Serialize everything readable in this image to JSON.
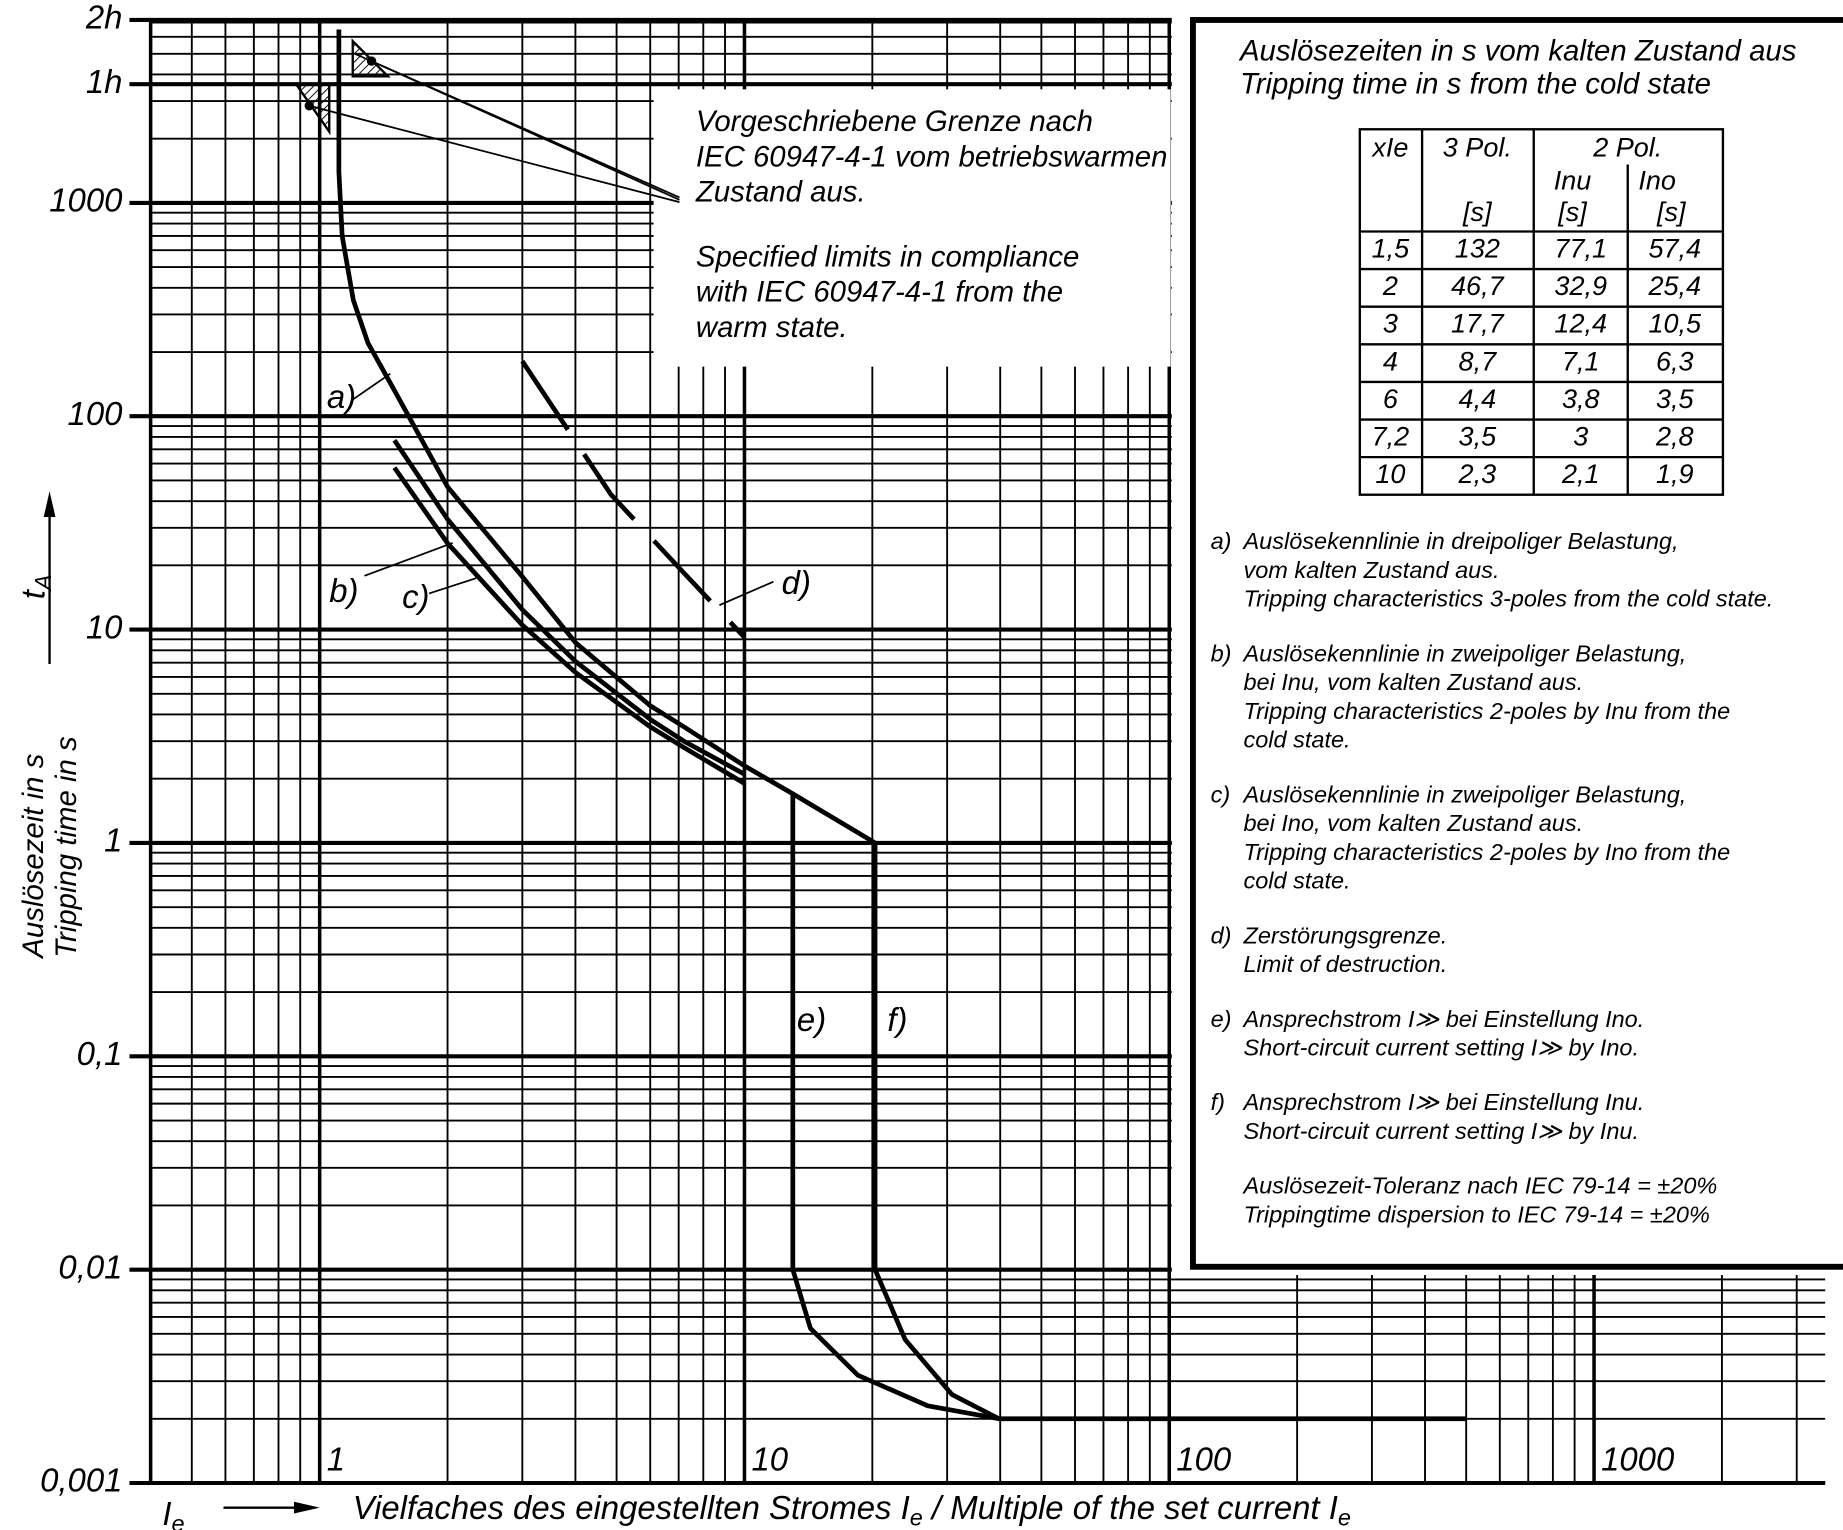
{
  "chart_data": {
    "type": "line",
    "xlog": true,
    "ylog": true,
    "grid": true,
    "xlim": [
      0.4,
      3500
    ],
    "ylim": [
      0.001,
      7200
    ],
    "xticks": [
      1,
      10,
      100,
      1000
    ],
    "yticks": [
      {
        "value": 0.001,
        "label": "0,001"
      },
      {
        "value": 0.01,
        "label": "0,01"
      },
      {
        "value": 0.1,
        "label": "0,1"
      },
      1,
      10,
      100,
      1000,
      {
        "value": 3600,
        "label": "1h"
      },
      {
        "value": 7200,
        "label": "2h"
      }
    ],
    "x_symbol": {
      "base": "I",
      "sub": "e"
    },
    "x_label": [
      {
        "text": "Vielfaches des eingestellten Stromes "
      },
      {
        "text": "I"
      },
      {
        "text": "e",
        "sub": true
      },
      {
        "text": " / Multiple of the set current "
      },
      {
        "text": "I"
      },
      {
        "text": "e",
        "sub": true
      }
    ],
    "y_symbol": {
      "base": "t",
      "sub": "A"
    },
    "y_label": [
      "Auslösezeit in s",
      "Tripping time in s"
    ],
    "annotation": [
      [
        "Vorgeschriebene Grenze nach",
        "IEC 60947-4-1 vom betriebswarmen",
        "Zustand aus."
      ],
      [
        "Specified limits in compliance",
        "with IEC 60947-4-1 from the",
        "warm state."
      ]
    ],
    "series": [
      {
        "name": "a)",
        "color": "#000",
        "x": [
          1.11,
          1.11,
          1.13,
          1.2,
          1.3,
          1.5,
          2,
          3,
          4,
          6,
          7.2,
          10,
          13,
          20.3
        ],
        "values": [
          6500,
          1400,
          700,
          350,
          220,
          132,
          46.7,
          17.7,
          8.7,
          4.4,
          3.5,
          2.3,
          1.7,
          1
        ]
      },
      {
        "name": "b)",
        "color": "#000",
        "x": [
          1.5,
          2,
          3,
          4,
          6,
          7.2,
          10
        ],
        "values": [
          77.1,
          32.9,
          12.4,
          7.1,
          3.8,
          3,
          2.1
        ]
      },
      {
        "name": "c)",
        "color": "#000",
        "x": [
          1.5,
          2,
          3,
          4,
          6,
          7.2,
          10
        ],
        "values": [
          57.4,
          25.4,
          10.5,
          6.3,
          3.5,
          2.8,
          1.9
        ]
      },
      {
        "name": "d)",
        "color": "#000",
        "style": "dashed",
        "x": [
          3,
          4.85,
          7.1,
          10
        ],
        "values": [
          181,
          43,
          19,
          9.2
        ]
      },
      {
        "name": "e)",
        "color": "#000",
        "x": [
          13,
          13,
          14.3,
          18.5,
          27,
          39.7
        ],
        "values": [
          1.7,
          0.01,
          0.0053,
          0.0032,
          0.0023,
          0.002
        ]
      },
      {
        "name": "f)",
        "color": "#000",
        "x": [
          20.3,
          20.3,
          23.9,
          30.8,
          39.7,
          500
        ],
        "values": [
          1,
          0.01,
          0.0047,
          0.0026,
          0.002,
          0.002
        ]
      }
    ]
  },
  "info_box": {
    "title": [
      "Auslösezeiten in s vom kalten Zustand aus",
      "Tripping time in s from the cold state"
    ],
    "table": {
      "header": [
        "xIe",
        "3 Pol.",
        "2 Pol."
      ],
      "subheader": [
        "Inu",
        "Ino"
      ],
      "units": [
        "[s]",
        "[s]",
        "[s]"
      ],
      "rows": [
        [
          "1,5",
          "132",
          "77,1",
          "57,4"
        ],
        [
          "2",
          "46,7",
          "32,9",
          "25,4"
        ],
        [
          "3",
          "17,7",
          "12,4",
          "10,5"
        ],
        [
          "4",
          "8,7",
          "7,1",
          "6,3"
        ],
        [
          "6",
          "4,4",
          "3,8",
          "3,5"
        ],
        [
          "7,2",
          "3,5",
          "3",
          "2,8"
        ],
        [
          "10",
          "2,3",
          "2,1",
          "1,9"
        ]
      ]
    },
    "notes": [
      {
        "label": "a)",
        "lines": [
          "Auslösekennlinie in dreipoliger Belastung,",
          "vom kalten Zustand aus.",
          "Tripping characteristics 3-poles from the cold state."
        ]
      },
      {
        "label": "b)",
        "lines": [
          "Auslösekennlinie in zweipoliger Belastung,",
          "bei Inu, vom kalten Zustand aus.",
          "Tripping characteristics 2-poles by Inu from the",
          "cold state."
        ]
      },
      {
        "label": "c)",
        "lines": [
          "Auslösekennlinie in zweipoliger Belastung,",
          "bei Ino, vom kalten Zustand aus.",
          "Tripping characteristics 2-poles by Ino from the",
          "cold state."
        ]
      },
      {
        "label": "d)",
        "lines": [
          "Zerstörungsgrenze.",
          "Limit of destruction."
        ]
      },
      {
        "label": "e)",
        "lines": [
          "Ansprechstrom I≫ bei Einstellung Ino.",
          "Short-circuit current setting I≫ by Ino."
        ]
      },
      {
        "label": "f)",
        "lines": [
          "Ansprechstrom I≫ bei Einstellung Inu.",
          "Short-circuit current setting I≫ by Inu."
        ]
      },
      {
        "lines": [
          "Auslösezeit-Toleranz nach IEC 79-14 = ±20%",
          "Trippingtime dispersion to IEC 79-14 = ±20%"
        ]
      }
    ]
  }
}
